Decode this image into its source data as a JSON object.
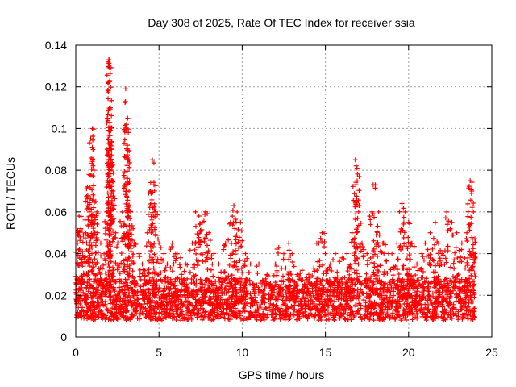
{
  "chart_data": {
    "type": "scatter",
    "title": "Day 308 of 2025, Rate Of TEC Index for receiver ssia",
    "xlabel": "GPS time / hours",
    "ylabel": "ROTI / TECUs",
    "xlim": [
      0,
      25
    ],
    "ylim": [
      0,
      0.14
    ],
    "xticks": [
      0,
      5,
      10,
      15,
      20,
      25
    ],
    "xtick_labels": [
      "0",
      "5",
      "10",
      "15",
      "20",
      "25"
    ],
    "yticks": [
      0,
      0.02,
      0.04,
      0.06,
      0.08,
      0.1,
      0.12,
      0.14
    ],
    "ytick_labels": [
      "0",
      "0.02",
      "0.04",
      "0.06",
      "0.08",
      "0.1",
      "0.12",
      "0.14"
    ],
    "grid": true,
    "marker": "+",
    "color": "#ff0000",
    "series": [
      {
        "name": "ROTI",
        "points": [
          [
            0.1,
            0.045
          ],
          [
            0.2,
            0.058
          ],
          [
            0.3,
            0.052
          ],
          [
            0.4,
            0.041
          ],
          [
            0.5,
            0.038
          ],
          [
            0.6,
            0.05
          ],
          [
            0.7,
            0.072
          ],
          [
            0.8,
            0.078
          ],
          [
            0.9,
            0.095
          ],
          [
            1.0,
            0.1
          ],
          [
            1.1,
            0.08
          ],
          [
            1.2,
            0.065
          ],
          [
            1.3,
            0.05
          ],
          [
            1.5,
            0.045
          ],
          [
            1.7,
            0.04
          ],
          [
            1.9,
            0.06
          ],
          [
            2.0,
            0.133
          ],
          [
            2.02,
            0.131
          ],
          [
            2.05,
            0.123
          ],
          [
            2.08,
            0.11
          ],
          [
            2.1,
            0.099
          ],
          [
            2.15,
            0.09
          ],
          [
            2.2,
            0.075
          ],
          [
            2.4,
            0.05
          ],
          [
            2.6,
            0.035
          ],
          [
            2.8,
            0.06
          ],
          [
            3.0,
            0.119
          ],
          [
            3.05,
            0.102
          ],
          [
            3.1,
            0.092
          ],
          [
            3.15,
            0.085
          ],
          [
            3.2,
            0.07
          ],
          [
            3.3,
            0.06
          ],
          [
            3.5,
            0.045
          ],
          [
            3.8,
            0.04
          ],
          [
            4.0,
            0.035
          ],
          [
            4.3,
            0.05
          ],
          [
            4.5,
            0.07
          ],
          [
            4.6,
            0.085
          ],
          [
            4.7,
            0.073
          ],
          [
            4.8,
            0.06
          ],
          [
            5.0,
            0.045
          ],
          [
            5.3,
            0.04
          ],
          [
            5.5,
            0.035
          ],
          [
            5.8,
            0.045
          ],
          [
            6.0,
            0.04
          ],
          [
            6.3,
            0.038
          ],
          [
            6.6,
            0.035
          ],
          [
            7.0,
            0.045
          ],
          [
            7.2,
            0.06
          ],
          [
            7.4,
            0.058
          ],
          [
            7.6,
            0.055
          ],
          [
            7.8,
            0.06
          ],
          [
            8.0,
            0.05
          ],
          [
            8.3,
            0.04
          ],
          [
            8.6,
            0.035
          ],
          [
            9.0,
            0.045
          ],
          [
            9.3,
            0.055
          ],
          [
            9.5,
            0.063
          ],
          [
            9.7,
            0.06
          ],
          [
            9.9,
            0.055
          ],
          [
            10.2,
            0.04
          ],
          [
            10.5,
            0.035
          ],
          [
            11.0,
            0.035
          ],
          [
            11.5,
            0.03
          ],
          [
            12.0,
            0.035
          ],
          [
            12.2,
            0.043
          ],
          [
            12.5,
            0.04
          ],
          [
            12.8,
            0.045
          ],
          [
            13.0,
            0.04
          ],
          [
            13.3,
            0.03
          ],
          [
            13.6,
            0.032
          ],
          [
            14.0,
            0.03
          ],
          [
            14.3,
            0.033
          ],
          [
            14.6,
            0.045
          ],
          [
            14.8,
            0.05
          ],
          [
            15.0,
            0.04
          ],
          [
            15.3,
            0.035
          ],
          [
            15.6,
            0.04
          ],
          [
            16.0,
            0.038
          ],
          [
            16.3,
            0.04
          ],
          [
            16.6,
            0.05
          ],
          [
            16.8,
            0.085
          ],
          [
            16.9,
            0.081
          ],
          [
            17.0,
            0.06
          ],
          [
            17.2,
            0.045
          ],
          [
            17.5,
            0.04
          ],
          [
            17.8,
            0.06
          ],
          [
            18.0,
            0.073
          ],
          [
            18.2,
            0.06
          ],
          [
            18.5,
            0.045
          ],
          [
            18.8,
            0.04
          ],
          [
            19.0,
            0.04
          ],
          [
            19.3,
            0.045
          ],
          [
            19.6,
            0.064
          ],
          [
            19.8,
            0.06
          ],
          [
            20.0,
            0.055
          ],
          [
            20.2,
            0.045
          ],
          [
            20.5,
            0.035
          ],
          [
            20.8,
            0.04
          ],
          [
            21.0,
            0.045
          ],
          [
            21.3,
            0.05
          ],
          [
            21.6,
            0.055
          ],
          [
            21.8,
            0.045
          ],
          [
            22.0,
            0.04
          ],
          [
            22.3,
            0.06
          ],
          [
            22.6,
            0.055
          ],
          [
            22.9,
            0.05
          ],
          [
            23.2,
            0.045
          ],
          [
            23.5,
            0.05
          ],
          [
            23.7,
            0.075
          ],
          [
            23.8,
            0.07
          ],
          [
            23.9,
            0.06
          ],
          [
            24.0,
            0.04
          ]
        ]
      }
    ],
    "baseline_band": {
      "min": 0.008,
      "max": 0.028,
      "x_range": [
        0,
        24
      ]
    }
  }
}
